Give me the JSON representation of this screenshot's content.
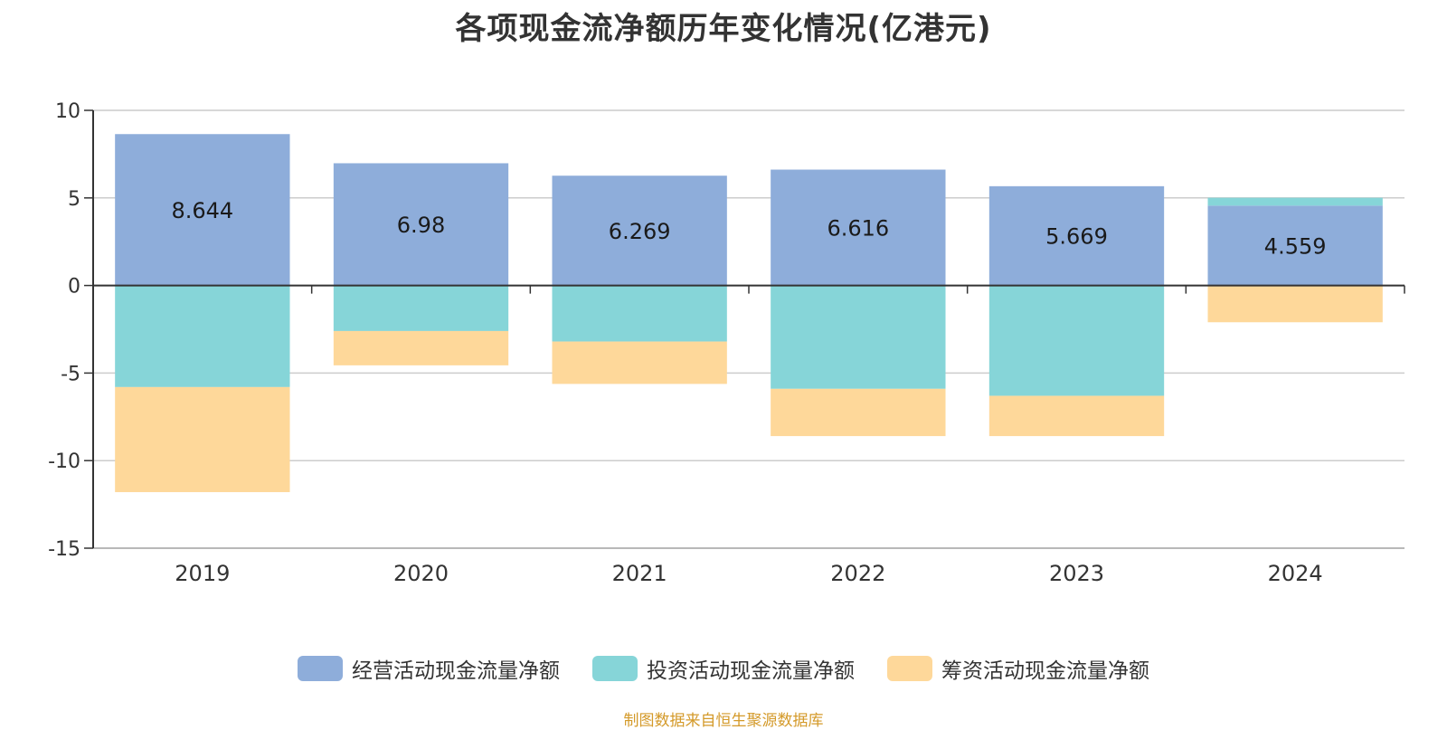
{
  "chart_data": {
    "type": "bar",
    "stacked": true,
    "title": "各项现金流净额历年变化情况(亿港元)",
    "categories": [
      "2019",
      "2020",
      "2021",
      "2022",
      "2023",
      "2024"
    ],
    "series": [
      {
        "name": "经营活动现金流量净额",
        "color": "#8eadda",
        "values": [
          8.644,
          6.98,
          6.269,
          6.616,
          5.669,
          4.559
        ]
      },
      {
        "name": "投资活动现金流量净额",
        "color": "#86d5d8",
        "values": [
          -5.8,
          -2.6,
          -3.2,
          -5.9,
          -6.3,
          0.45
        ]
      },
      {
        "name": "筹资活动现金流量净额",
        "color": "#fed89a",
        "values": [
          -6.0,
          -1.96,
          -2.42,
          -2.7,
          -2.3,
          -2.1
        ]
      }
    ],
    "data_labels": [
      "8.644",
      "6.98",
      "6.269",
      "6.616",
      "5.669",
      "4.559"
    ],
    "y_ticks": [
      "10",
      "5",
      "0",
      "-5",
      "-10",
      "-15"
    ],
    "ylim": [
      -15,
      10
    ],
    "grid": true,
    "legend_position": "bottom"
  },
  "source_note": "制图数据来自恒生聚源数据库"
}
